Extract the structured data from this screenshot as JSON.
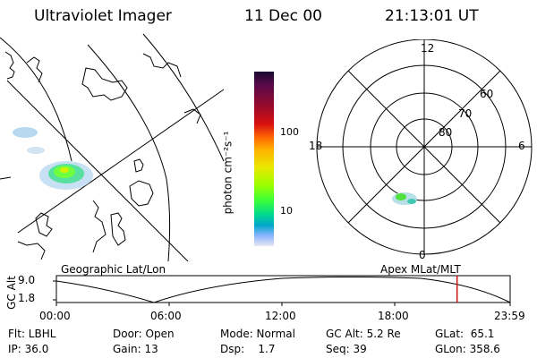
{
  "header": {
    "instrument": "Ultraviolet Imager",
    "date": "11 Dec 00",
    "time": "21:13:01 UT"
  },
  "colorbar": {
    "unit_label": "photon cm⁻²s⁻¹",
    "ticks": [
      "100",
      "10"
    ],
    "colors": [
      "#1a0a2e",
      "#5a0a4a",
      "#9a0a2a",
      "#d81010",
      "#ff6a00",
      "#ffb400",
      "#e8e800",
      "#9cff00",
      "#38ff38",
      "#00d890",
      "#00a8c8",
      "#8ab4ff",
      "#d8d8e8"
    ]
  },
  "polar": {
    "mlt_labels": {
      "top": "12",
      "left": "18",
      "right": "6",
      "bottom": "0"
    },
    "lat_labels": [
      "60",
      "70",
      "80"
    ]
  },
  "altitude_plot": {
    "map_label": "Geographic Lat/Lon",
    "polar_label": "Apex MLat/MLT",
    "y_axis_title": "GC Alt",
    "y_ticks": [
      "9.0",
      "1.8"
    ],
    "x_ticks": [
      "00:00",
      "06:00",
      "12:00",
      "18:00",
      "23:59"
    ],
    "current_time_fraction": 0.883,
    "marker_color": "#d01010"
  },
  "info": {
    "filter": "Flt: LBHL",
    "ip": "IP: 36.0",
    "door": "Door: Open",
    "gain": "Gain: 13",
    "mode": "Mode: Normal",
    "dsp": "Dsp:    1.7",
    "gc_alt": "GC Alt: 5.2 Re",
    "seq": "Seq: 39",
    "glat": "GLat:  65.1",
    "glon": "GLon: 358.6"
  }
}
